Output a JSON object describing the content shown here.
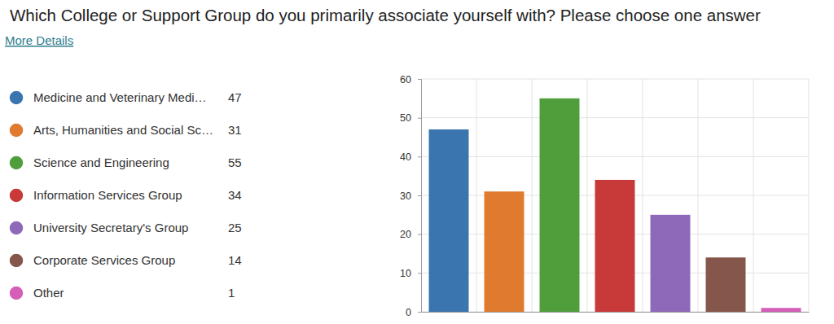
{
  "chart_data": {
    "type": "bar",
    "title": "Which College or Support Group do you primarily associate yourself with? Please choose one answer",
    "annotations": [
      "More Details"
    ],
    "categories": [
      "Medicine and Veterinary Medi…",
      "Arts, Humanities and Social Sc…",
      "Science and Engineering",
      "Information Services Group",
      "University Secretary's Group",
      "Corporate Services Group",
      "Other"
    ],
    "values": [
      47,
      31,
      55,
      34,
      25,
      14,
      1
    ],
    "colors": [
      "#3a75b0",
      "#e07a2e",
      "#4f9e3b",
      "#c8393a",
      "#8e69ba",
      "#85564c",
      "#d55fb8"
    ],
    "ylim": [
      0,
      60
    ],
    "yticks": [
      0,
      10,
      20,
      30,
      40,
      50,
      60
    ],
    "grid": true,
    "legend": "left",
    "tick_labels": "y",
    "data_labels": false
  }
}
